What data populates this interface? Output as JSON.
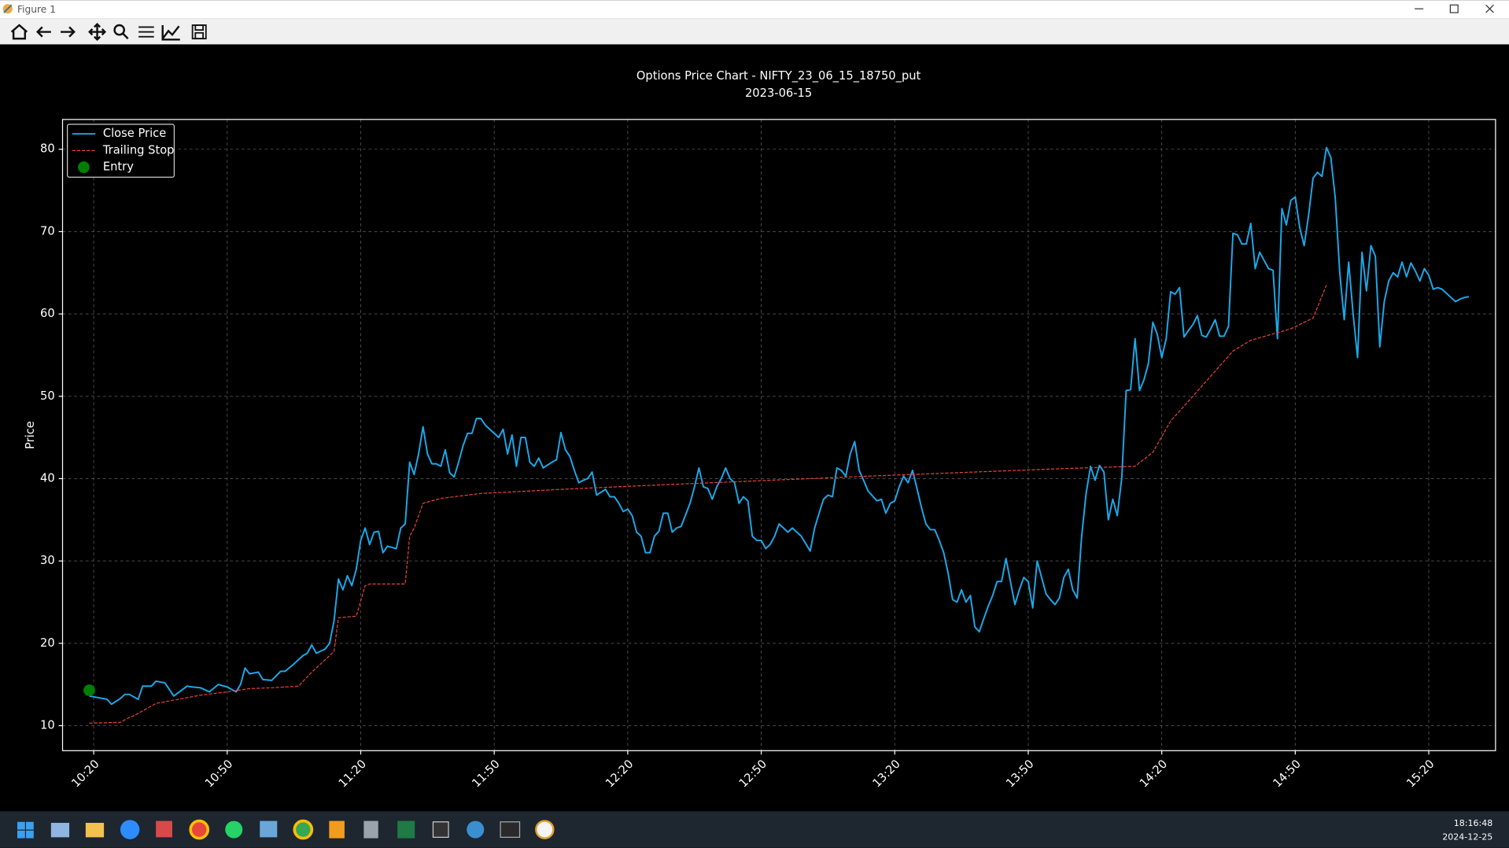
{
  "window": {
    "title": "Figure 1",
    "clock_time": "18:16:48",
    "clock_date": "2024-12-25"
  },
  "chart_data": {
    "type": "line",
    "title": "Options Price Chart - NIFTY_23_06_15_18750_put",
    "subtitle": "2023-06-15",
    "y_label": "Price",
    "xlim": [
      "10:13",
      "15:35"
    ],
    "xticks": [
      "10:20",
      "10:50",
      "11:20",
      "11:50",
      "12:20",
      "12:50",
      "13:20",
      "13:50",
      "14:20",
      "14:50",
      "15:20"
    ],
    "ylim": [
      6.96,
      83.62
    ],
    "yticks": [
      10,
      20,
      30,
      40,
      50,
      60,
      70,
      80
    ],
    "grid": true,
    "legend": "upper-left",
    "series": [
      {
        "name": "Close Price",
        "color": "#1ba9ea",
        "style": "solid",
        "x": [
          "10:19",
          "10:20",
          "10:23",
          "10:24",
          "10:26",
          "10:27",
          "10:28",
          "10:30",
          "10:31",
          "10:33",
          "10:34",
          "10:36",
          "10:38",
          "10:39",
          "10:41",
          "10:42",
          "10:44",
          "10:46",
          "10:48",
          "10:50",
          "10:52",
          "10:53",
          "10:54",
          "10:55",
          "10:57",
          "10:58",
          "11:00",
          "11:02",
          "11:03",
          "11:05",
          "11:07",
          "11:08",
          "11:09",
          "11:10",
          "11:12",
          "11:13",
          "11:14",
          "11:15",
          "11:16",
          "11:17",
          "11:18",
          "11:19",
          "11:20",
          "11:21",
          "11:22",
          "11:23",
          "11:24",
          "11:25",
          "11:26",
          "11:28",
          "11:29",
          "11:30",
          "11:31",
          "11:32",
          "11:33",
          "11:34",
          "11:35",
          "11:36",
          "11:37",
          "11:38",
          "11:39",
          "11:40",
          "11:41",
          "11:42",
          "11:43",
          "11:44",
          "11:45",
          "11:46",
          "11:47",
          "11:48",
          "11:50",
          "11:51",
          "11:52",
          "11:53",
          "11:54",
          "11:55",
          "11:56",
          "11:57",
          "11:58",
          "11:59",
          "12:00",
          "12:01",
          "12:03",
          "12:04",
          "12:05",
          "12:06",
          "12:07",
          "12:08",
          "12:09",
          "12:10",
          "12:11",
          "12:12",
          "12:13",
          "12:15",
          "12:16",
          "12:17",
          "12:18",
          "12:19",
          "12:20",
          "12:21",
          "12:22",
          "12:23",
          "12:24",
          "12:25",
          "12:26",
          "12:27",
          "12:28",
          "12:29",
          "12:30",
          "12:31",
          "12:32",
          "12:34",
          "12:35",
          "12:36",
          "12:37",
          "12:38",
          "12:39",
          "12:40",
          "12:41",
          "12:42",
          "12:43",
          "12:44",
          "12:45",
          "12:46",
          "12:47",
          "12:48",
          "12:49",
          "12:50",
          "12:51",
          "12:52",
          "12:53",
          "12:54",
          "12:56",
          "12:57",
          "12:58",
          "12:59",
          "13:01",
          "13:02",
          "13:03",
          "13:04",
          "13:05",
          "13:06",
          "13:07",
          "13:08",
          "13:09",
          "13:10",
          "13:11",
          "13:12",
          "13:13",
          "13:14",
          "13:16",
          "13:17",
          "13:18",
          "13:19",
          "13:20",
          "13:21",
          "13:22",
          "13:23",
          "13:24",
          "13:25",
          "13:26",
          "13:27",
          "13:28",
          "13:29",
          "13:30",
          "13:31",
          "13:32",
          "13:33",
          "13:34",
          "13:35",
          "13:36",
          "13:37",
          "13:38",
          "13:39",
          "13:40",
          "13:41",
          "13:42",
          "13:43",
          "13:44",
          "13:45",
          "13:46",
          "13:47",
          "13:48",
          "13:49",
          "13:50",
          "13:51",
          "13:52",
          "13:53",
          "13:54",
          "13:55",
          "13:56",
          "13:57",
          "13:58",
          "13:59",
          "14:00",
          "14:01",
          "14:02",
          "14:03",
          "14:04",
          "14:05",
          "14:06",
          "14:07",
          "14:08",
          "14:09",
          "14:10",
          "14:11",
          "14:12",
          "14:13",
          "14:14",
          "14:15",
          "14:16",
          "14:17",
          "14:18",
          "14:19",
          "14:20",
          "14:21",
          "14:22",
          "14:23",
          "14:24",
          "14:25",
          "14:26",
          "14:27",
          "14:28",
          "14:29",
          "14:30",
          "14:31",
          "14:32",
          "14:33",
          "14:34",
          "14:35",
          "14:36",
          "14:37",
          "14:38",
          "14:39",
          "14:40",
          "14:41",
          "14:42",
          "14:43",
          "14:44",
          "14:45",
          "14:46",
          "14:47",
          "14:48",
          "14:49",
          "14:50",
          "14:51",
          "14:52",
          "14:53",
          "14:54",
          "14:55",
          "14:56",
          "14:57",
          "14:58",
          "14:59",
          "15:00",
          "15:01",
          "15:02",
          "15:03",
          "15:04",
          "15:05",
          "15:06",
          "15:07",
          "15:08",
          "15:09",
          "15:10",
          "15:11",
          "15:12",
          "15:13",
          "15:14",
          "15:15",
          "15:16",
          "15:17",
          "15:18",
          "15:19",
          "15:20",
          "15:21",
          "15:22",
          "15:23",
          "15:24",
          "15:25",
          "15:26",
          "15:27",
          "15:28",
          "15:29"
        ],
        "values": [
          13.6,
          13.5,
          13.2,
          12.6,
          13.3,
          13.8,
          13.8,
          13.2,
          14.8,
          14.8,
          15.4,
          15.2,
          13.6,
          14.0,
          14.8,
          14.7,
          14.6,
          14.1,
          15.0,
          14.7,
          14.1,
          15.0,
          17.0,
          16.3,
          16.5,
          15.6,
          15.5,
          16.6,
          16.6,
          17.5,
          18.5,
          18.8,
          19.8,
          18.8,
          19.3,
          20.0,
          22.7,
          27.8,
          26.5,
          28.2,
          27.0,
          29.0,
          32.5,
          34.0,
          32.0,
          33.5,
          33.6,
          31.0,
          31.8,
          31.5,
          34.0,
          34.5,
          42.0,
          40.5,
          43.0,
          46.3,
          43.0,
          41.8,
          41.8,
          41.5,
          43.5,
          40.7,
          40.2,
          42.0,
          44.0,
          45.5,
          45.5,
          47.3,
          47.3,
          46.5,
          45.5,
          45.0,
          46.0,
          43.0,
          45.3,
          41.5,
          45.0,
          45.0,
          42.0,
          41.5,
          42.5,
          41.3,
          42.0,
          42.3,
          45.6,
          43.5,
          42.7,
          41.0,
          39.5,
          39.8,
          40.0,
          40.8,
          38.0,
          38.7,
          37.8,
          37.8,
          37.0,
          36.0,
          36.3,
          35.5,
          33.5,
          33.0,
          31.0,
          31.0,
          33.0,
          33.6,
          35.8,
          35.8,
          33.5,
          34.0,
          34.2,
          37.0,
          39.0,
          41.3,
          39.0,
          38.8,
          37.5,
          39.0,
          40.0,
          41.3,
          40.0,
          39.5,
          37.0,
          37.8,
          37.3,
          33.0,
          32.5,
          32.5,
          31.5,
          32.0,
          33.0,
          34.5,
          33.5,
          34.0,
          33.5,
          33.0,
          31.2,
          34.0,
          35.8,
          37.5,
          38.0,
          37.8,
          41.3,
          41.0,
          40.3,
          43.0,
          44.5,
          41.0,
          39.8,
          38.5,
          37.3,
          37.5,
          35.8,
          37.0,
          37.3,
          39.0,
          40.3,
          39.5,
          41.0,
          38.8,
          36.5,
          34.5,
          33.8,
          33.8,
          32.5,
          31.0,
          28.5,
          25.3,
          25.0,
          26.5,
          25.0,
          25.8,
          22.0,
          21.4,
          23.0,
          24.5,
          25.8,
          27.5,
          27.5,
          30.3,
          27.5,
          24.7,
          26.5,
          28.0,
          27.5,
          24.3,
          30.0,
          28.0,
          26.0,
          25.3,
          24.7,
          25.5,
          28.0,
          29.0,
          26.5,
          25.5,
          33.0,
          38.2,
          41.5,
          39.8,
          41.6,
          40.8,
          35.0,
          37.5,
          35.5,
          40.0,
          50.7,
          50.8,
          57.0,
          50.7,
          52.0,
          54.0,
          59.0,
          57.5,
          54.7,
          57.0,
          62.7,
          62.4,
          63.2,
          57.2,
          58.0,
          58.7,
          59.8,
          57.4,
          57.2,
          58.2,
          59.3,
          57.3,
          57.3,
          58.5,
          69.8,
          69.6,
          68.5,
          68.5,
          71.0,
          65.5,
          67.5,
          66.5,
          65.5,
          65.3,
          57.0,
          72.8,
          70.8,
          73.8,
          74.2,
          70.5,
          68.3,
          72.0,
          76.5,
          77.2,
          76.7,
          80.2,
          79.0,
          74.0,
          65.0,
          59.3,
          66.3,
          60.0,
          54.7,
          67.5,
          62.8,
          68.3,
          67.0,
          56.0,
          61.5,
          64.0,
          65.0,
          64.5,
          66.3,
          64.5,
          66.2,
          65.2,
          64.0,
          65.5,
          64.7,
          63.0,
          63.2,
          63.0,
          62.5,
          62.0,
          61.5,
          61.8,
          62.0,
          62.1
        ]
      },
      {
        "name": "Trailing Stop",
        "color": "#e8413a",
        "style": "dashed",
        "x": [
          "10:19",
          "10:26",
          "10:28",
          "10:29",
          "10:32",
          "10:34",
          "10:39",
          "10:44",
          "10:50",
          "10:55",
          "11:00",
          "11:06",
          "11:09",
          "11:14",
          "11:15",
          "11:19",
          "11:21",
          "11:22",
          "11:30",
          "11:31",
          "11:32",
          "11:34",
          "11:38",
          "11:47",
          "12:09",
          "12:30",
          "13:14",
          "13:57",
          "14:14",
          "14:18",
          "14:22",
          "14:27",
          "14:36",
          "14:40",
          "14:49",
          "14:54",
          "14:57"
        ],
        "values": [
          10.3,
          10.4,
          11.0,
          11.2,
          12.1,
          12.7,
          13.2,
          13.7,
          14.1,
          14.5,
          14.6,
          14.8,
          16.5,
          19.0,
          23.1,
          23.3,
          27.0,
          27.2,
          27.2,
          33.0,
          34.0,
          37.0,
          37.6,
          38.2,
          38.8,
          39.3,
          40.3,
          41.2,
          41.5,
          43.2,
          47.0,
          50.0,
          55.5,
          56.8,
          58.2,
          59.5,
          63.5
        ]
      },
      {
        "name": "Entry",
        "color": "#008000",
        "style": "marker",
        "x": [
          "10:19"
        ],
        "values": [
          14.3
        ]
      }
    ]
  }
}
